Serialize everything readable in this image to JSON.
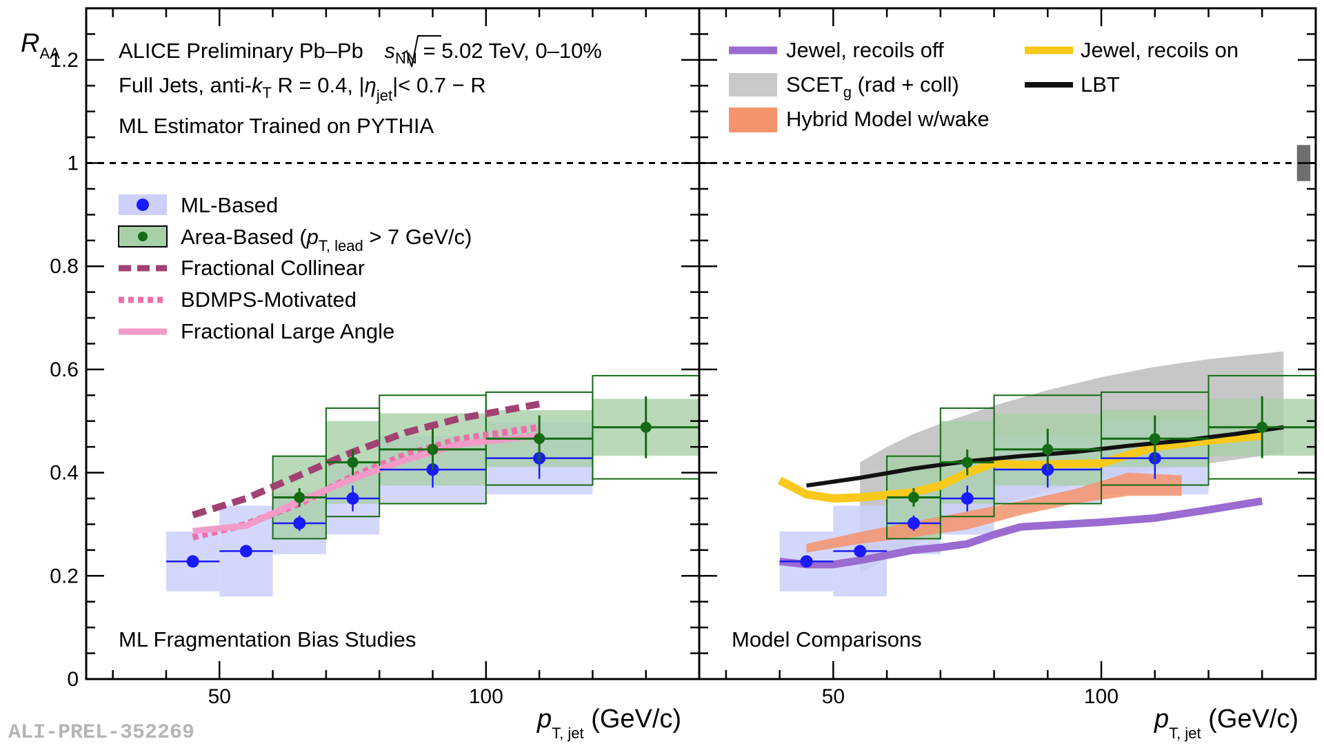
{
  "chart_data": [
    {
      "type": "scatter",
      "panel": "left",
      "annotations": {
        "line1_prefix": "ALICE Preliminary Pb–Pb ",
        "sqrt_s": "s",
        "sqrt_sub": "NN",
        "line1_suffix": " = 5.02 TeV, 0–10%",
        "line2_a": "Full Jets, anti-",
        "line2_k": "k",
        "line2_ksub": "T",
        "line2_b": " R = 0.4, |",
        "line2_eta": "η",
        "line2_etasub": "jet",
        "line2_c": "|< 0.7 − R",
        "line3": "ML Estimator Trained on PYTHIA",
        "bottom": "ML Fragmentation Bias Studies"
      },
      "xlabel": "p",
      "xlabel_sub": "T, jet",
      "xlabel_unit": " (GeV/c)",
      "ylabel": "R",
      "ylabel_sub": "AA",
      "xlim": [
        25,
        140
      ],
      "ylim": [
        0,
        1.3
      ],
      "xticks": [
        50,
        100
      ],
      "yticks": [
        0,
        0.2,
        0.4,
        0.6,
        0.8,
        1,
        1.2
      ],
      "ytick_labels": [
        "0",
        "0.2",
        "0.4",
        "0.6",
        "0.8",
        "1",
        "1.2"
      ],
      "xtick_labels": [
        "50",
        "100"
      ],
      "reference_line": 1,
      "legend": {
        "ml": "ML-Based",
        "area_a": "Area-Based (",
        "area_p": "p",
        "area_sub": "T, lead",
        "area_b": " > 7 GeV/c)",
        "fc": "Fractional Collinear",
        "bdmps": "BDMPS-Motivated",
        "fla": "Fractional Large Angle"
      },
      "series": [
        {
          "name": "ML-Based",
          "color": "#1a1aff",
          "x": [
            45,
            55,
            65,
            75,
            90,
            110
          ],
          "y": [
            0.228,
            0.248,
            0.302,
            0.35,
            0.406,
            0.428
          ],
          "xerr": [
            5,
            5,
            5,
            5,
            10,
            10
          ],
          "yerr": [
            0.0,
            0.0,
            0.015,
            0.025,
            0.035,
            0.04
          ],
          "sys": [
            0.058,
            0.088,
            0.06,
            0.07,
            0.065,
            0.07
          ]
        },
        {
          "name": "Area-Based",
          "color": "#136b13",
          "x": [
            65,
            75,
            90,
            110,
            130
          ],
          "y": [
            0.352,
            0.42,
            0.445,
            0.466,
            0.488
          ],
          "xerr": [
            5,
            5,
            10,
            10,
            10
          ],
          "yerr": [
            0.018,
            0.025,
            0.04,
            0.045,
            0.06
          ],
          "sys": [
            0.08,
            0.105,
            0.105,
            0.09,
            0.1
          ],
          "sys_fill": [
            0.08,
            0.08,
            0.07,
            0.055,
            0.055
          ]
        },
        {
          "name": "Fractional Collinear",
          "color": "#a14173",
          "style": "dashed",
          "x": [
            45,
            55,
            65,
            75,
            85,
            95,
            110
          ],
          "y": [
            0.318,
            0.35,
            0.395,
            0.44,
            0.478,
            0.505,
            0.533
          ]
        },
        {
          "name": "BDMPS-Motivated",
          "color": "#ee6fa8",
          "style": "dotted",
          "x": [
            45,
            55,
            65,
            75,
            85,
            95,
            110
          ],
          "y": [
            0.275,
            0.3,
            0.34,
            0.393,
            0.435,
            0.465,
            0.488
          ]
        },
        {
          "name": "Fractional Large Angle",
          "color": "#f29bc9",
          "style": "solid",
          "x": [
            45,
            55,
            65,
            75,
            85,
            95,
            110
          ],
          "y": [
            0.287,
            0.297,
            0.345,
            0.388,
            0.425,
            0.455,
            0.472
          ]
        }
      ]
    },
    {
      "type": "scatter",
      "panel": "right",
      "annotations": {
        "bottom": "Model Comparisons"
      },
      "xlabel": "p",
      "xlabel_sub": "T, jet",
      "xlabel_unit": " (GeV/c)",
      "xlim": [
        25,
        140
      ],
      "ylim": [
        0,
        1.3
      ],
      "xticks": [
        50,
        100
      ],
      "xtick_labels": [
        "50",
        "100"
      ],
      "reference_line": 1,
      "global_uncertainty": [
        0.965,
        1.035
      ],
      "legend": {
        "jewel_off": "Jewel, recoils off",
        "jewel_on": "Jewel, recoils on",
        "scet": "SCET",
        "scet_sub": "g",
        "scet_b": " (rad + coll)",
        "lbt": "LBT",
        "hybrid": "Hybrid Model w/wake"
      },
      "series": [
        {
          "name": "ML-Based",
          "color": "#1a1aff",
          "x": [
            45,
            55,
            65,
            75,
            90,
            110
          ],
          "y": [
            0.228,
            0.248,
            0.302,
            0.35,
            0.406,
            0.428
          ],
          "xerr": [
            5,
            5,
            5,
            5,
            10,
            10
          ],
          "yerr": [
            0.0,
            0.0,
            0.015,
            0.025,
            0.035,
            0.04
          ],
          "sys": [
            0.058,
            0.088,
            0.06,
            0.07,
            0.065,
            0.07
          ]
        },
        {
          "name": "Area-Based",
          "color": "#136b13",
          "x": [
            65,
            75,
            90,
            110,
            130
          ],
          "y": [
            0.352,
            0.42,
            0.445,
            0.466,
            0.488
          ],
          "xerr": [
            5,
            5,
            10,
            10,
            10
          ],
          "yerr": [
            0.018,
            0.025,
            0.04,
            0.045,
            0.06
          ],
          "sys": [
            0.08,
            0.105,
            0.105,
            0.09,
            0.1
          ],
          "sys_fill": [
            0.08,
            0.08,
            0.07,
            0.055,
            0.055
          ]
        },
        {
          "name": "Jewel, recoils off",
          "color": "#9a6bd0",
          "x": [
            40,
            45,
            50,
            55,
            60,
            65,
            70,
            75,
            80,
            85,
            90,
            100,
            110,
            120,
            130
          ],
          "y": [
            0.228,
            0.222,
            0.222,
            0.23,
            0.24,
            0.25,
            0.255,
            0.262,
            0.28,
            0.295,
            0.298,
            0.304,
            0.312,
            0.328,
            0.345
          ]
        },
        {
          "name": "Jewel, recoils on",
          "color": "#f8c91a",
          "x": [
            40,
            45,
            50,
            55,
            60,
            65,
            70,
            75,
            80,
            85,
            90,
            100,
            110,
            120,
            130
          ],
          "y": [
            0.385,
            0.358,
            0.35,
            0.352,
            0.357,
            0.362,
            0.375,
            0.4,
            0.418,
            0.415,
            0.416,
            0.418,
            0.45,
            0.462,
            0.472
          ]
        },
        {
          "name": "LBT",
          "color": "#111111",
          "x": [
            45,
            55,
            65,
            75,
            85,
            95,
            105,
            115,
            125,
            134
          ],
          "y": [
            0.375,
            0.39,
            0.408,
            0.422,
            0.432,
            0.44,
            0.452,
            0.462,
            0.475,
            0.488
          ]
        },
        {
          "name": "SCETg (rad + coll)",
          "color": "#bdbdbd",
          "x": [
            55,
            60,
            65,
            70,
            80,
            90,
            100,
            110,
            120,
            134
          ],
          "low": [
            0.205,
            0.232,
            0.26,
            0.29,
            0.335,
            0.365,
            0.388,
            0.405,
            0.418,
            0.438
          ],
          "high": [
            0.42,
            0.45,
            0.475,
            0.495,
            0.53,
            0.56,
            0.585,
            0.605,
            0.62,
            0.635
          ]
        },
        {
          "name": "Hybrid Model w/wake",
          "color": "#f4936c",
          "x": [
            45,
            55,
            65,
            75,
            85,
            95,
            105,
            115
          ],
          "low": [
            0.245,
            0.262,
            0.275,
            0.29,
            0.318,
            0.34,
            0.355,
            0.355
          ],
          "high": [
            0.262,
            0.285,
            0.305,
            0.325,
            0.345,
            0.368,
            0.4,
            0.395
          ]
        }
      ]
    }
  ],
  "watermark": "ALI-PREL-352269",
  "colors": {
    "ml": "#1a1aff",
    "ml_box": "#ccd0fb",
    "area": "#136b13",
    "area_box": "#a8d0a8"
  }
}
